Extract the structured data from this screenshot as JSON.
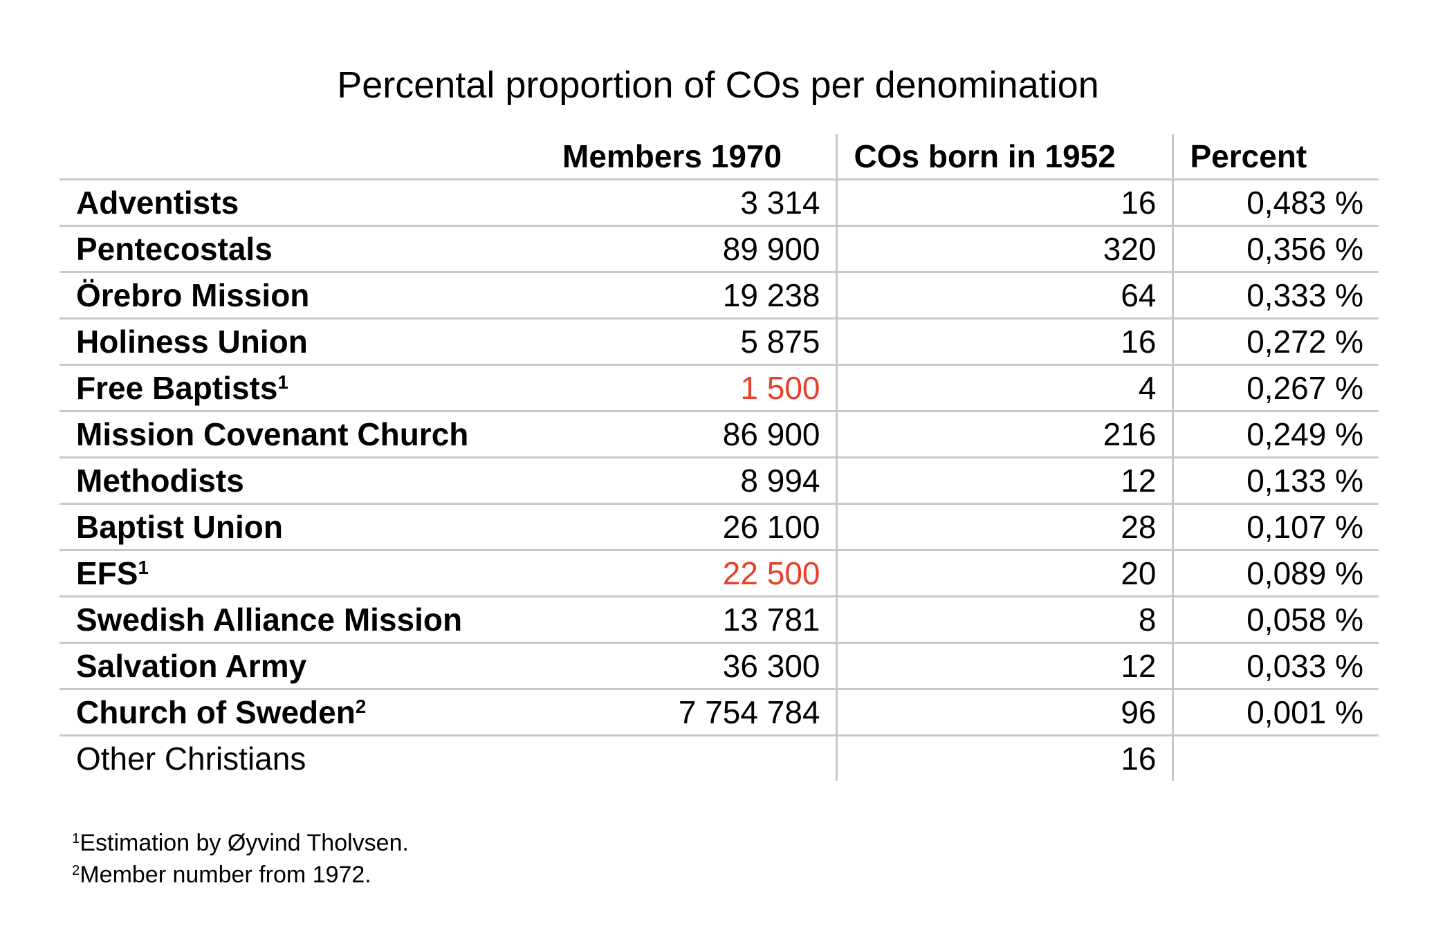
{
  "title": "Percental proportion of COs per denomination",
  "headers": [
    "",
    "Members 1970",
    "COs born in 1952",
    "Percent"
  ],
  "rows": [
    {
      "name": "Adventists",
      "sup": "",
      "members": "3 314",
      "members_red": false,
      "cos": "16",
      "percent": "0,483 %",
      "bold": true
    },
    {
      "name": "Pentecostals",
      "sup": "",
      "members": "89 900",
      "members_red": false,
      "cos": "320",
      "percent": "0,356 %",
      "bold": true
    },
    {
      "name": "Örebro Mission",
      "sup": "",
      "members": "19 238",
      "members_red": false,
      "cos": "64",
      "percent": "0,333 %",
      "bold": true
    },
    {
      "name": "Holiness Union",
      "sup": "",
      "members": "5 875",
      "members_red": false,
      "cos": "16",
      "percent": "0,272 %",
      "bold": true
    },
    {
      "name": "Free Baptists",
      "sup": "1",
      "members": "1 500",
      "members_red": true,
      "cos": "4",
      "percent": "0,267 %",
      "bold": true
    },
    {
      "name": "Mission Covenant Church",
      "sup": "",
      "members": "86 900",
      "members_red": false,
      "cos": "216",
      "percent": "0,249 %",
      "bold": true
    },
    {
      "name": "Methodists",
      "sup": "",
      "members": "8 994",
      "members_red": false,
      "cos": "12",
      "percent": "0,133 %",
      "bold": true
    },
    {
      "name": "Baptist Union",
      "sup": "",
      "members": "26 100",
      "members_red": false,
      "cos": "28",
      "percent": "0,107 %",
      "bold": true
    },
    {
      "name": "EFS",
      "sup": "1",
      "members": "22 500",
      "members_red": true,
      "cos": "20",
      "percent": "0,089 %",
      "bold": true
    },
    {
      "name": "Swedish Alliance Mission",
      "sup": "",
      "members": "13 781",
      "members_red": false,
      "cos": "8",
      "percent": "0,058 %",
      "bold": true
    },
    {
      "name": "Salvation Army",
      "sup": "",
      "members": "36 300",
      "members_red": false,
      "cos": "12",
      "percent": "0,033 %",
      "bold": true
    },
    {
      "name": "Church of Sweden",
      "sup": "2",
      "members": "7 754 784",
      "members_red": false,
      "cos": "96",
      "percent": "0,001 %",
      "bold": true
    },
    {
      "name": "Other Christians",
      "sup": "",
      "members": "",
      "members_red": false,
      "cos": "16",
      "percent": "",
      "bold": false
    }
  ],
  "footnotes": [
    {
      "mark": "1",
      "text": "Estimation by Øyvind Tholvsen."
    },
    {
      "mark": "2",
      "text": "Member number from 1972."
    }
  ],
  "colors": {
    "highlight": "#e8402a",
    "grid": "#c8c8c8"
  }
}
